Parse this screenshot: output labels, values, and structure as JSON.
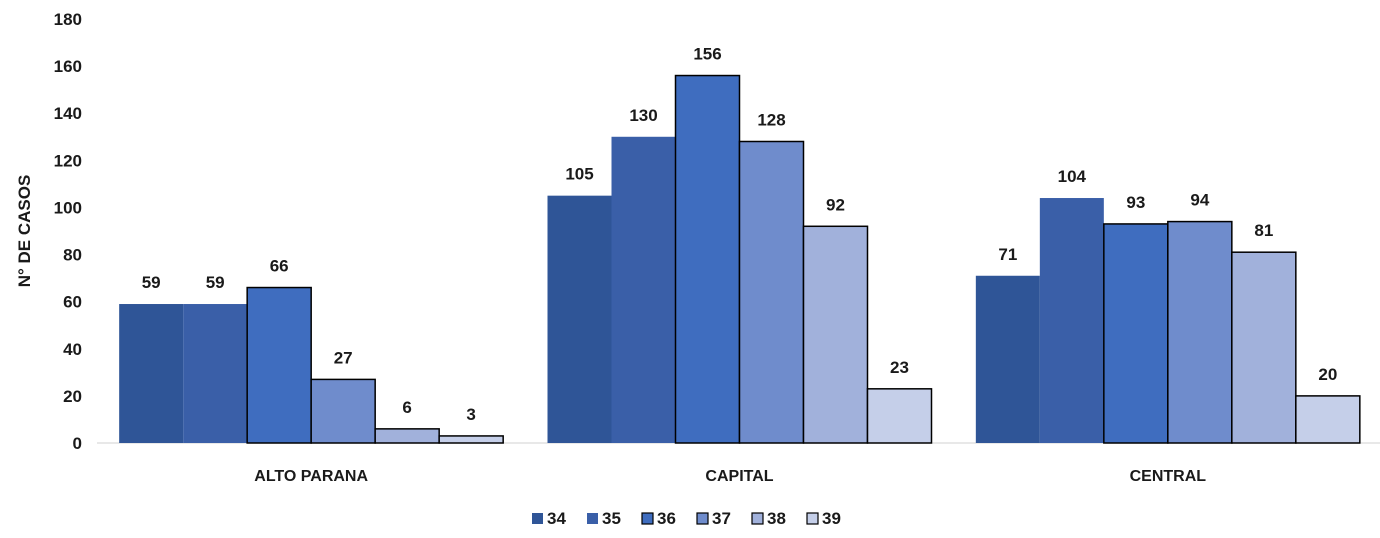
{
  "chart_data": {
    "type": "bar",
    "title": "",
    "xlabel": "",
    "ylabel": "N° DE CASOS",
    "ylim": [
      0,
      180
    ],
    "yticks": [
      0,
      20,
      40,
      60,
      80,
      100,
      120,
      140,
      160,
      180
    ],
    "grid": false,
    "legend_position": "bottom",
    "categories": [
      "ALTO PARANA",
      "CAPITAL",
      "CENTRAL"
    ],
    "series": [
      {
        "name": "34",
        "color": "#2f5597",
        "outlined": false,
        "values": [
          59,
          105,
          71
        ]
      },
      {
        "name": "35",
        "color": "#3a5fa8",
        "outlined": false,
        "values": [
          59,
          130,
          104
        ]
      },
      {
        "name": "36",
        "color": "#3f6dbf",
        "outlined": true,
        "values": [
          66,
          156,
          93
        ]
      },
      {
        "name": "37",
        "color": "#6f8ccc",
        "outlined": true,
        "values": [
          27,
          128,
          94
        ]
      },
      {
        "name": "38",
        "color": "#a1b1db",
        "outlined": true,
        "values": [
          6,
          92,
          81
        ]
      },
      {
        "name": "39",
        "color": "#c5cfe9",
        "outlined": true,
        "values": [
          3,
          23,
          20
        ]
      }
    ]
  }
}
